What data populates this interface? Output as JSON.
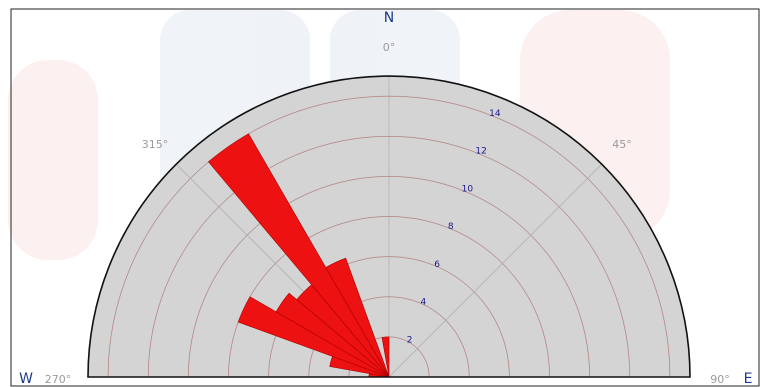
{
  "chart_data": {
    "type": "polar-bar",
    "title": "",
    "direction_labels": {
      "north": "N",
      "west": "W",
      "east": "E"
    },
    "angle_labels": {
      "north": "0°",
      "northwest": "315°",
      "northeast": "45°",
      "west": "270°",
      "east": "90°"
    },
    "radial_axis": {
      "min": 0,
      "max": 15,
      "ticks": [
        2,
        4,
        6,
        8,
        10,
        12,
        14
      ],
      "tick_labels": [
        "2",
        "4",
        "6",
        "8",
        "10",
        "12",
        "14"
      ]
    },
    "sector_width_deg": 10,
    "sectors": [
      {
        "direction_deg": 275,
        "value": 1.0
      },
      {
        "direction_deg": 285,
        "value": 3.0
      },
      {
        "direction_deg": 295,
        "value": 8.0
      },
      {
        "direction_deg": 305,
        "value": 6.5
      },
      {
        "direction_deg": 315,
        "value": 6.0
      },
      {
        "direction_deg": 325,
        "value": 14.0
      },
      {
        "direction_deg": 335,
        "value": 6.3
      },
      {
        "direction_deg": 355,
        "value": 2.0
      }
    ],
    "colors": {
      "bar_fill": "#ee1111",
      "bar_stroke": "#aa0000",
      "plot_fill": "#d4d4d4",
      "outline": "#111111",
      "grid": "#b8b8b8"
    }
  }
}
